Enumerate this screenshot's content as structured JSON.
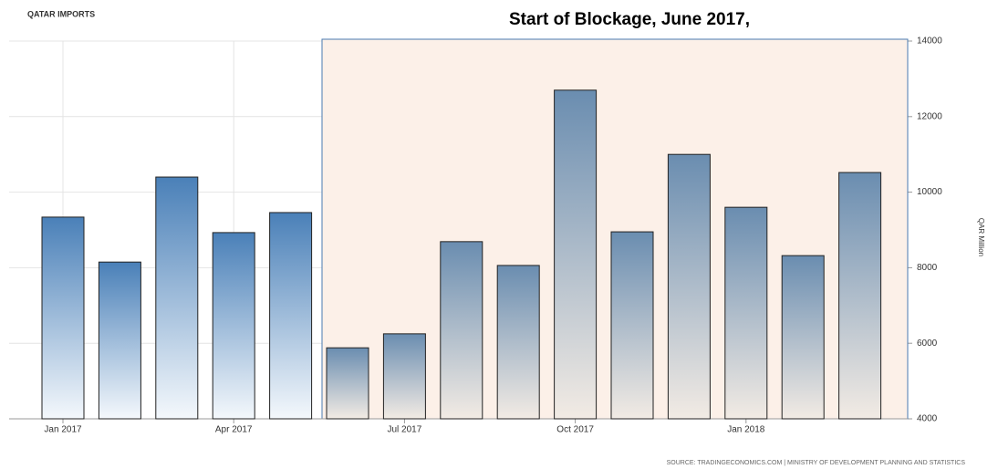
{
  "chart_data": {
    "type": "bar",
    "title": "QATAR IMPORTS",
    "annotation": "Start of Blockage, June 2017,",
    "y_label": "QAR Million",
    "source": "SOURCE: TRADINGECONOMICS.COM | MINISTRY OF DEVELOPMENT PLANNING AND STATISTICS",
    "categories": [
      "Jan 2017",
      null,
      null,
      "Apr 2017",
      null,
      null,
      "Jul 2017",
      null,
      null,
      "Oct 2017",
      null,
      null,
      "Jan 2018",
      null,
      null
    ],
    "values": [
      9340,
      8150,
      10400,
      8930,
      9460,
      5880,
      6250,
      8690,
      8060,
      12700,
      8950,
      11000,
      9600,
      8320,
      10520
    ],
    "color": "#4a80b8",
    "ylim": [
      4000,
      14000
    ],
    "yticks": [
      4000,
      6000,
      8000,
      10000,
      12000,
      14000
    ],
    "grid": true
  }
}
